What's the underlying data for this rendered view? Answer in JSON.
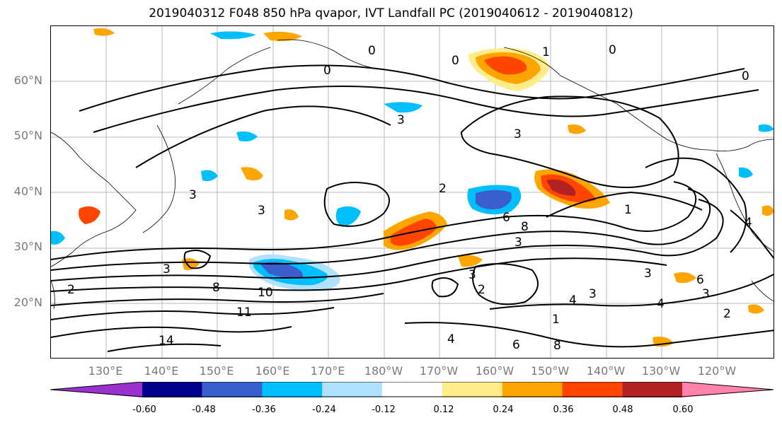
{
  "title": "2019040312 F048 850 hPa qvapor, IVT Landfall PC (2019040612 - 2019040812)",
  "lat_labels": [
    "60°N",
    "50°N",
    "40°N",
    "30°N",
    "20°N"
  ],
  "lon_labels": [
    "130°E",
    "140°E",
    "150°E",
    "160°E",
    "170°E",
    "180°W",
    "170°W",
    "160°W",
    "150°W",
    "140°W",
    "130°W",
    "120°W"
  ],
  "colorbar": {
    "colors": [
      "#9932cc",
      "#00008b",
      "#3a5fcd",
      "#00bfff",
      "#b0e2ff",
      "#ffffff",
      "#ffec8b",
      "#ffa500",
      "#ff4500",
      "#b22222",
      "#ff83aa"
    ],
    "tick_labels": [
      "-0.60",
      "-0.48",
      "-0.36",
      "-0.24",
      "-0.12",
      "0.12",
      "0.24",
      "0.36",
      "0.48",
      "0.60"
    ]
  },
  "contour_labels": [
    "0",
    "0",
    "0",
    "0",
    "1",
    "0",
    "3",
    "3",
    "3",
    "2",
    "3",
    "6",
    "8",
    "3",
    "1",
    "2",
    "3",
    "8",
    "10",
    "11",
    "14",
    "3",
    "3",
    "2",
    "3",
    "4",
    "6",
    "3",
    "2",
    "4",
    "1",
    "4",
    "8",
    "6",
    "4"
  ]
}
